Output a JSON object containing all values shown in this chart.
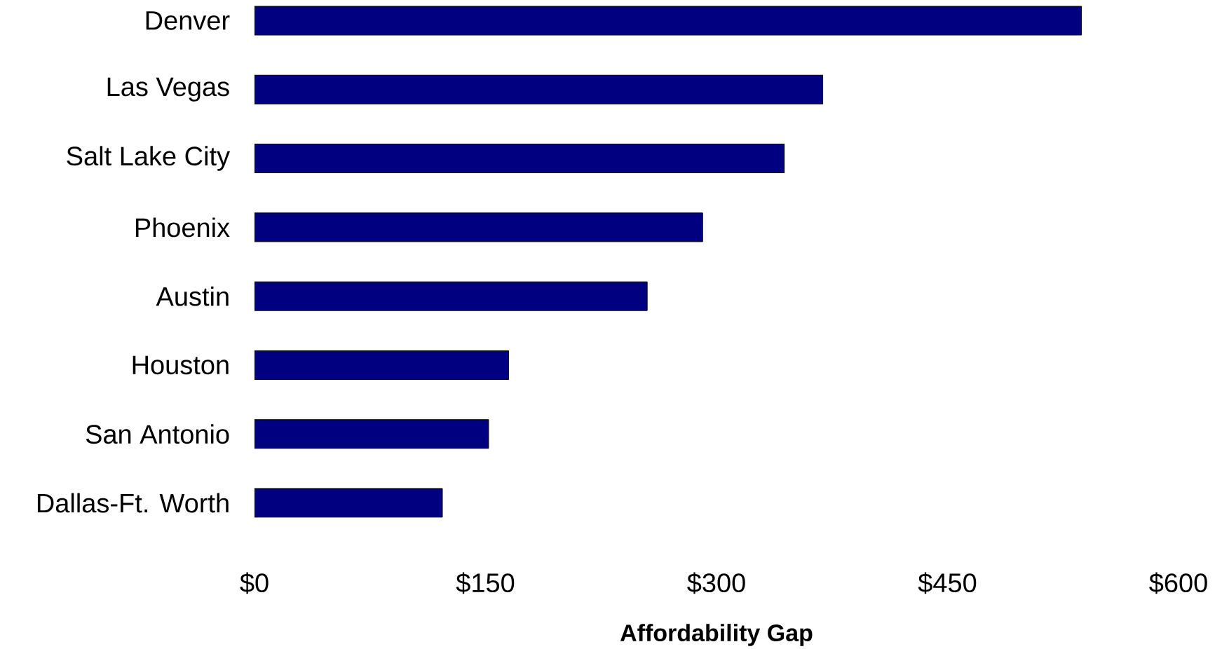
{
  "chart_data": {
    "type": "bar",
    "orientation": "horizontal",
    "xlabel": "Affordability Gap",
    "categories": [
      "Denver",
      "Las Vegas",
      "Salt Lake City",
      "Phoenix",
      "Austin",
      "Houston",
      "San Antonio",
      "Dallas-Ft. Worth"
    ],
    "values": [
      537,
      369,
      344,
      291,
      255,
      165,
      152,
      122
    ],
    "color": "#000080",
    "xlim": [
      0,
      600
    ],
    "xticks": [
      {
        "value": 0,
        "label": "$0"
      },
      {
        "value": 150,
        "label": "$150"
      },
      {
        "value": 300,
        "label": "$300"
      },
      {
        "value": 450,
        "label": "$450"
      },
      {
        "value": 600,
        "label": "$600"
      }
    ],
    "grid": false
  }
}
